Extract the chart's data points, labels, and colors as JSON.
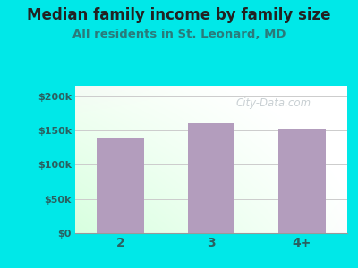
{
  "title": "Median family income by family size",
  "subtitle": "All residents in St. Leonard, MD",
  "categories": [
    "2",
    "3",
    "4+"
  ],
  "values": [
    140000,
    160000,
    152000
  ],
  "bar_color": "#b39dbd",
  "background_color": "#00e8e8",
  "plot_bg_top": "#eaf2f8",
  "plot_bg_bottom": "#d8eedd",
  "title_color": "#222222",
  "subtitle_color": "#2a7a7a",
  "tick_color": "#2a6060",
  "yticks": [
    0,
    50000,
    100000,
    150000,
    200000
  ],
  "ytick_labels": [
    "$0",
    "$50k",
    "$100k",
    "$150k",
    "$200k"
  ],
  "ylim": [
    0,
    215000
  ],
  "watermark": "City-Data.com",
  "title_fontsize": 12,
  "subtitle_fontsize": 9.5
}
